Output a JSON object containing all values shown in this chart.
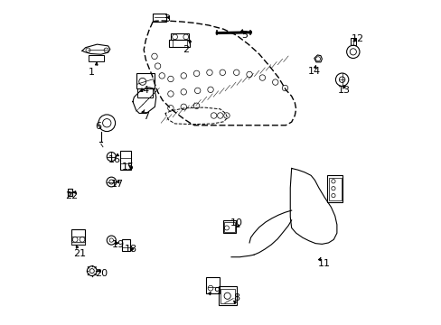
{
  "bg_color": "#ffffff",
  "fig_width": 4.89,
  "fig_height": 3.6,
  "dpi": 100,
  "line_color": "#000000",
  "label_fontsize": 8.0
}
